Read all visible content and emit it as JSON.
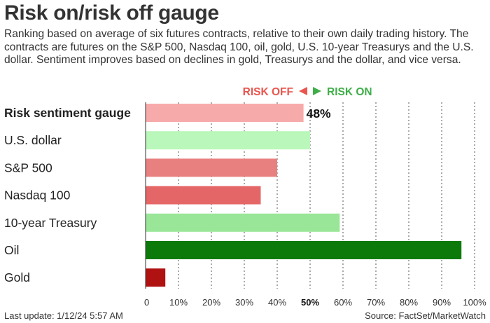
{
  "title": "Risk on/risk off gauge",
  "subtitle": "Ranking based on average of six futures contracts, relative to their own daily trading history. The contracts are futures on the S&P 500, Nasdaq 100, oil, gold, U.S. 10-year Treasurys and the U.S. dollar. Sentiment improves based on declines in gold, Treasurys and the dollar, and vice versa.",
  "footer": {
    "last_update": "Last update: 1/12/24 5:57 AM",
    "source": "Source: FactSet/MarketWatch"
  },
  "annotation": {
    "risk_off": "RISK OFF",
    "risk_on": "RISK ON",
    "risk_off_color": "#e8564f",
    "risk_on_color": "#3fae49"
  },
  "chart_data": {
    "type": "bar",
    "orientation": "horizontal",
    "xlim": [
      0,
      100
    ],
    "x_unit": "%",
    "grid": true,
    "categories": [
      "Risk sentiment gauge",
      "U.S. dollar",
      "S&P 500",
      "Nasdaq 100",
      "10-year Treasury",
      "Oil",
      "Gold"
    ],
    "values": [
      48,
      50,
      40,
      35,
      59,
      96,
      6
    ],
    "bold_categories": [
      "Risk sentiment gauge"
    ],
    "value_labels": {
      "Risk sentiment gauge": "48%"
    },
    "colors": [
      "#f7aaaa",
      "#baf7ba",
      "#e98080",
      "#e46666",
      "#99e699",
      "#0b7a0b",
      "#b01212"
    ],
    "ticks": [
      "0",
      "10%",
      "20%",
      "30%",
      "40%",
      "50%",
      "60%",
      "70%",
      "80%",
      "90%",
      "100%"
    ],
    "bold_tick": "50%"
  }
}
